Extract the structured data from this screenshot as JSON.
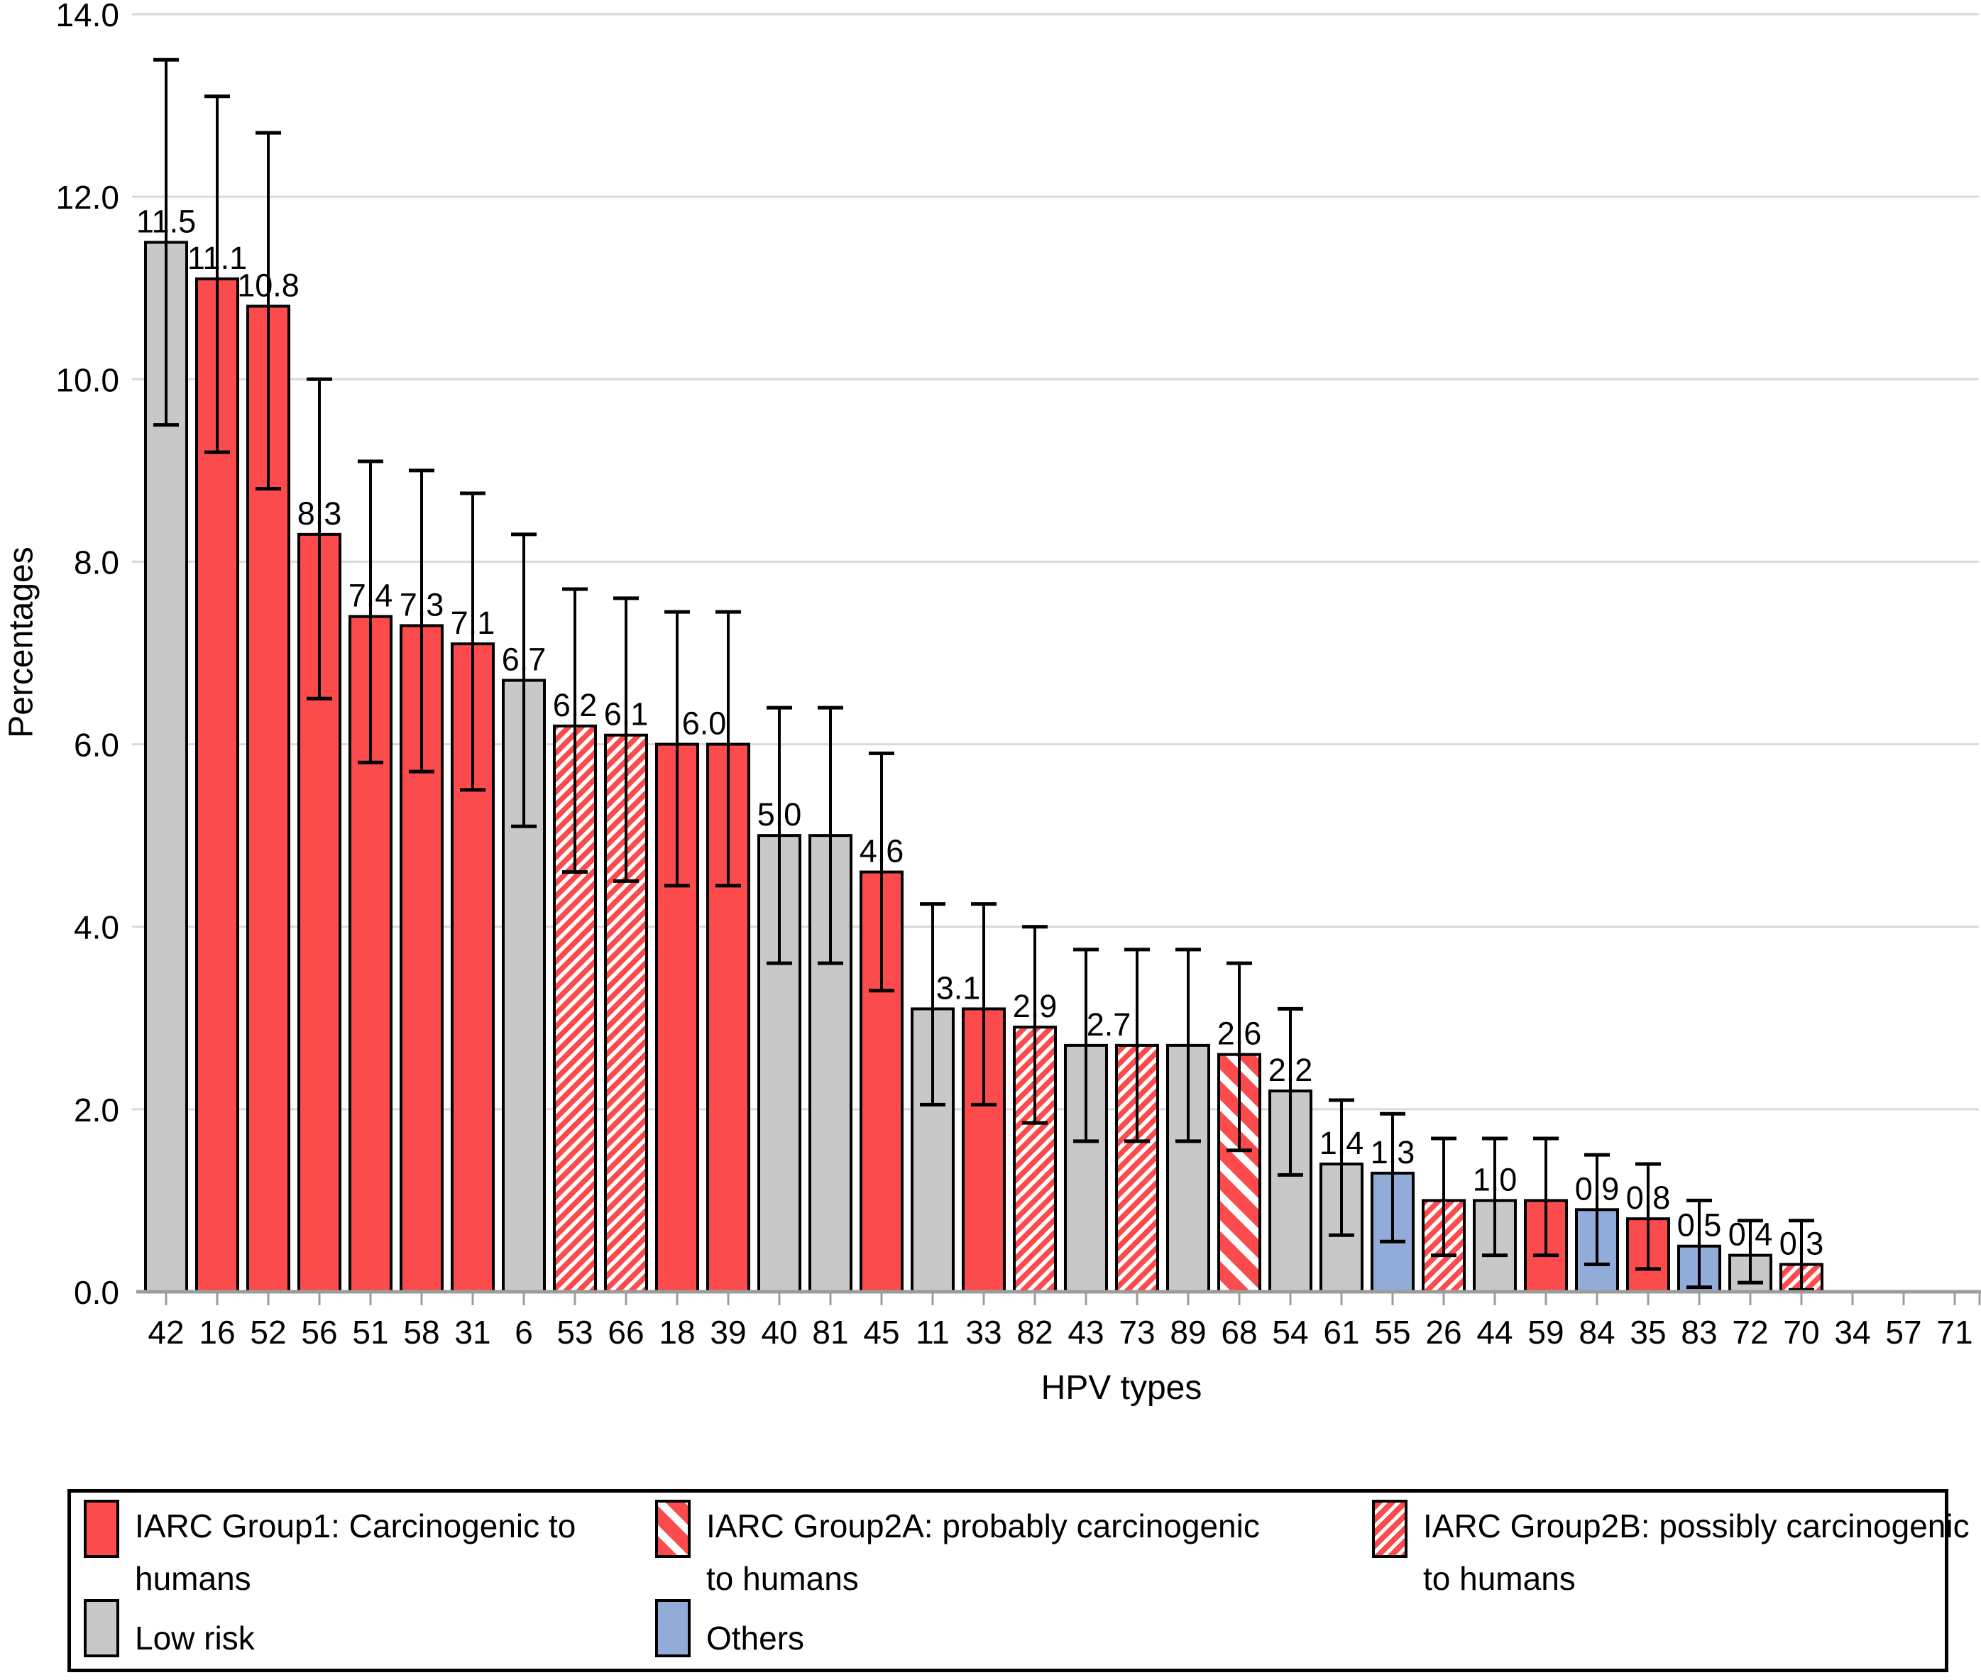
{
  "chart_data": {
    "type": "bar",
    "title": "",
    "xlabel": "HPV types",
    "ylabel": "Percentages",
    "ylim": [
      0,
      14
    ],
    "ytick_labels": [
      "0.0",
      "2.0",
      "4.0",
      "6.0",
      "8.0",
      "10.0",
      "12.0",
      "14.0"
    ],
    "grid": true,
    "error_bars": true,
    "legend_position": "bottom-box",
    "colors": {
      "group1": "#FB4B4D",
      "group2A_stripe_red": "#FB4B4D",
      "group2B_stripe_red": "#FB4B4D",
      "stripe_white": "#FFFFFF",
      "low_risk": "#C8C8C8",
      "others": "#92ACD9",
      "bar_outline": "#000000",
      "gridline": "#D9D9D9",
      "axis_line": "#9C9C9C",
      "text": "#000000"
    },
    "categories": [
      "42",
      "16",
      "52",
      "56",
      "51",
      "58",
      "31",
      "6",
      "53",
      "66",
      "18",
      "39",
      "40",
      "81",
      "45",
      "11",
      "33",
      "82",
      "43",
      "73",
      "89",
      "68",
      "54",
      "61",
      "55",
      "26",
      "44",
      "59",
      "84",
      "35",
      "83",
      "72",
      "70",
      "34",
      "57",
      "71"
    ],
    "bars": [
      {
        "category": "42",
        "value": 11.5,
        "data_label": "11.5",
        "group": "low_risk",
        "ci_low": 9.5,
        "ci_high": 13.5,
        "label_dx": 0
      },
      {
        "category": "16",
        "value": 11.1,
        "data_label": "11.1",
        "group": "group1",
        "ci_low": 9.2,
        "ci_high": 13.1,
        "label_dx": 0
      },
      {
        "category": "52",
        "value": 10.8,
        "data_label": "10.8",
        "group": "group1",
        "ci_low": 8.8,
        "ci_high": 12.7,
        "label_dx": 0
      },
      {
        "category": "56",
        "value": 8.3,
        "data_label": "8.3",
        "group": "group1",
        "ci_low": 6.5,
        "ci_high": 10.0,
        "label_dx": 0
      },
      {
        "category": "51",
        "value": 7.4,
        "data_label": "7.4",
        "group": "group1",
        "ci_low": 5.8,
        "ci_high": 9.1,
        "label_dx": 0
      },
      {
        "category": "58",
        "value": 7.3,
        "data_label": "7.3",
        "group": "group1",
        "ci_low": 5.7,
        "ci_high": 9.0,
        "label_dx": 0
      },
      {
        "category": "31",
        "value": 7.1,
        "data_label": "7.1",
        "group": "group1",
        "ci_low": 5.5,
        "ci_high": 8.75,
        "label_dx": 0
      },
      {
        "category": "6",
        "value": 6.7,
        "data_label": "6.7",
        "group": "low_risk",
        "ci_low": 5.1,
        "ci_high": 8.3,
        "label_dx": 0
      },
      {
        "category": "53",
        "value": 6.2,
        "data_label": "6.2",
        "group": "group2B",
        "ci_low": 4.6,
        "ci_high": 7.7,
        "label_dx": 0
      },
      {
        "category": "66",
        "value": 6.1,
        "data_label": "6.1",
        "group": "group2B",
        "ci_low": 4.5,
        "ci_high": 7.6,
        "label_dx": 0
      },
      {
        "category": "18",
        "value": 6.0,
        "data_label": "6.0",
        "group": "group1",
        "ci_low": 4.45,
        "ci_high": 7.45,
        "label_dx": 38
      },
      {
        "category": "39",
        "value": 6.0,
        "data_label": null,
        "group": "group1",
        "ci_low": 4.45,
        "ci_high": 7.45,
        "label_dx": 0
      },
      {
        "category": "40",
        "value": 5.0,
        "data_label": "5.0",
        "group": "low_risk",
        "ci_low": 3.6,
        "ci_high": 6.4,
        "label_dx": 0
      },
      {
        "category": "81",
        "value": 5.0,
        "data_label": null,
        "group": "low_risk",
        "ci_low": 3.6,
        "ci_high": 6.4,
        "label_dx": 0
      },
      {
        "category": "45",
        "value": 4.6,
        "data_label": "4.6",
        "group": "group1",
        "ci_low": 3.3,
        "ci_high": 5.9,
        "label_dx": 0
      },
      {
        "category": "11",
        "value": 3.1,
        "data_label": "3.1",
        "group": "low_risk",
        "ci_low": 2.05,
        "ci_high": 4.25,
        "label_dx": 36
      },
      {
        "category": "33",
        "value": 3.1,
        "data_label": null,
        "group": "group1",
        "ci_low": 2.05,
        "ci_high": 4.25,
        "label_dx": 0
      },
      {
        "category": "82",
        "value": 2.9,
        "data_label": "2.9",
        "group": "group2B",
        "ci_low": 1.85,
        "ci_high": 4.0,
        "label_dx": 0
      },
      {
        "category": "43",
        "value": 2.7,
        "data_label": "2.7",
        "group": "low_risk",
        "ci_low": 1.65,
        "ci_high": 3.75,
        "label_dx": 32
      },
      {
        "category": "73",
        "value": 2.7,
        "data_label": null,
        "group": "group2B",
        "ci_low": 1.65,
        "ci_high": 3.75,
        "label_dx": 0
      },
      {
        "category": "89",
        "value": 2.7,
        "data_label": null,
        "group": "low_risk",
        "ci_low": 1.65,
        "ci_high": 3.75,
        "label_dx": 0
      },
      {
        "category": "68",
        "value": 2.6,
        "data_label": "2.6",
        "group": "group2A",
        "ci_low": 1.55,
        "ci_high": 3.6,
        "label_dx": 0
      },
      {
        "category": "54",
        "value": 2.2,
        "data_label": "2.2",
        "group": "low_risk",
        "ci_low": 1.28,
        "ci_high": 3.1,
        "label_dx": 0
      },
      {
        "category": "61",
        "value": 1.4,
        "data_label": "1.4",
        "group": "low_risk",
        "ci_low": 0.62,
        "ci_high": 2.1,
        "label_dx": 0
      },
      {
        "category": "55",
        "value": 1.3,
        "data_label": "1.3",
        "group": "others",
        "ci_low": 0.55,
        "ci_high": 1.95,
        "label_dx": 0
      },
      {
        "category": "26",
        "value": 1.0,
        "data_label": null,
        "group": "group2B",
        "ci_low": 0.4,
        "ci_high": 1.68,
        "label_dx": 0
      },
      {
        "category": "44",
        "value": 1.0,
        "data_label": "1.0",
        "group": "low_risk",
        "ci_low": 0.4,
        "ci_high": 1.68,
        "label_dx": 0
      },
      {
        "category": "59",
        "value": 1.0,
        "data_label": null,
        "group": "group1",
        "ci_low": 0.4,
        "ci_high": 1.68,
        "label_dx": 0
      },
      {
        "category": "84",
        "value": 0.9,
        "data_label": "0.9",
        "group": "others",
        "ci_low": 0.3,
        "ci_high": 1.5,
        "label_dx": 0
      },
      {
        "category": "35",
        "value": 0.8,
        "data_label": "0.8",
        "group": "group1",
        "ci_low": 0.25,
        "ci_high": 1.4,
        "label_dx": 0
      },
      {
        "category": "83",
        "value": 0.5,
        "data_label": "0.5",
        "group": "others",
        "ci_low": 0.05,
        "ci_high": 1.0,
        "label_dx": 0
      },
      {
        "category": "72",
        "value": 0.4,
        "data_label": "0.4",
        "group": "low_risk",
        "ci_low": 0.1,
        "ci_high": 0.78,
        "label_dx": 0
      },
      {
        "category": "70",
        "value": 0.3,
        "data_label": "0.3",
        "group": "group2B",
        "ci_low": 0.02,
        "ci_high": 0.78,
        "label_dx": 0
      },
      {
        "category": "34",
        "value": 0.0,
        "data_label": null,
        "group": "none",
        "ci_low": null,
        "ci_high": null,
        "label_dx": 0
      },
      {
        "category": "57",
        "value": 0.0,
        "data_label": null,
        "group": "none",
        "ci_low": null,
        "ci_high": null,
        "label_dx": 0
      },
      {
        "category": "71",
        "value": 0.0,
        "data_label": null,
        "group": "none",
        "ci_low": null,
        "ci_high": null,
        "label_dx": 0
      }
    ],
    "legend": {
      "items": [
        {
          "group": "group1",
          "swatch": "solid-red",
          "lines": [
            "IARC Group1: Carcinogenic  to",
            "humans"
          ]
        },
        {
          "group": "low_risk",
          "swatch": "solid-gray",
          "lines": [
            "Low  risk"
          ]
        },
        {
          "group": "group2A",
          "swatch": "red-bold-white-hatch",
          "lines": [
            "IARC Group2A: probably carcinogenic",
            "to humans"
          ]
        },
        {
          "group": "others",
          "swatch": "solid-blue",
          "lines": [
            "Others"
          ]
        },
        {
          "group": "group2B",
          "swatch": "red-thin-white-hatch",
          "lines": [
            "IARC Group2B: possibly carcinogenic",
            "to humans"
          ]
        }
      ]
    }
  }
}
